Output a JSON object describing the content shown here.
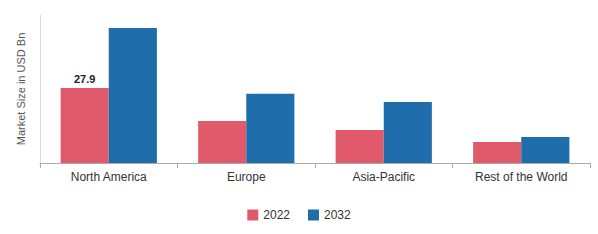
{
  "chart_data": {
    "type": "bar",
    "y_label": "Market Size in USD Bn",
    "categories": [
      "North America",
      "Europe",
      "Asia-Pacific",
      "Rest of the World"
    ],
    "series": [
      {
        "name": "2022",
        "color": "#e05a6c",
        "values": [
          27.9,
          15.6,
          12.3,
          7.8
        ],
        "value_labels": [
          "27.9",
          null,
          null,
          null
        ]
      },
      {
        "name": "2032",
        "color": "#1f6dab",
        "values": [
          50.2,
          25.7,
          22.7,
          9.7
        ]
      }
    ],
    "ylim": [
      0,
      55
    ],
    "tick_labels": "x",
    "grid": false,
    "legend": "bottom"
  }
}
